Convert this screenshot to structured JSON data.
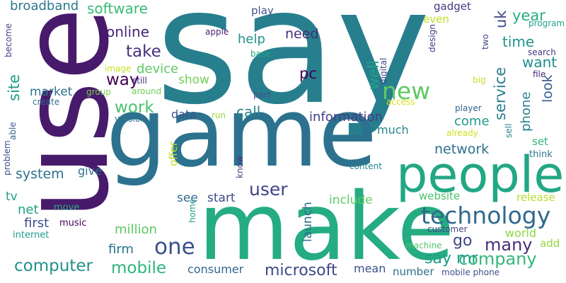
{
  "words": [
    {
      "text": "say",
      "color": "#277f8e"
    },
    {
      "text": "game",
      "color": "#2c728e"
    },
    {
      "text": "use",
      "color": "#481a6c"
    },
    {
      "text": "make",
      "color": "#25ac82"
    },
    {
      "text": "people",
      "color": "#22a785"
    },
    {
      "text": "technology",
      "color": "#31688e"
    },
    {
      "text": "new",
      "color": "#5ec962"
    },
    {
      "text": "user",
      "color": "#404588"
    },
    {
      "text": "one",
      "color": "#3b518b"
    },
    {
      "text": "computer",
      "color": "#21918c"
    },
    {
      "text": "mobile",
      "color": "#2fb47c"
    },
    {
      "text": "company",
      "color": "#35b779"
    },
    {
      "text": "microsoft",
      "color": "#3e4989"
    },
    {
      "text": "phone",
      "color": "#26828e"
    },
    {
      "text": "service",
      "color": "#287d8e"
    },
    {
      "text": "many",
      "color": "#472d7b"
    },
    {
      "text": "work",
      "color": "#4ac16d"
    },
    {
      "text": "system",
      "color": "#2d708e"
    },
    {
      "text": "take",
      "color": "#46327e"
    },
    {
      "text": "way",
      "color": "#440154"
    },
    {
      "text": "software",
      "color": "#3aba76"
    },
    {
      "text": "online",
      "color": "#482475"
    },
    {
      "text": "broadband",
      "color": "#2a788e"
    },
    {
      "text": "site",
      "color": "#1e9c89"
    },
    {
      "text": "market",
      "color": "#2c738e"
    },
    {
      "text": "network",
      "color": "#2d708e"
    },
    {
      "text": "pc",
      "color": "#440154"
    },
    {
      "text": "well",
      "color": "#20a386"
    },
    {
      "text": "want",
      "color": "#228c8d"
    },
    {
      "text": "look",
      "color": "#35608d"
    },
    {
      "text": "time",
      "color": "#1f958b"
    },
    {
      "text": "year",
      "color": "#27ad81"
    },
    {
      "text": "uk",
      "color": "#3e4a89"
    },
    {
      "text": "call",
      "color": "#26828e"
    },
    {
      "text": "information",
      "color": "#433e85"
    },
    {
      "text": "come",
      "color": "#1f978b"
    },
    {
      "text": "much",
      "color": "#24868e"
    },
    {
      "text": "device",
      "color": "#5ec962"
    },
    {
      "text": "show",
      "color": "#73d056"
    },
    {
      "text": "need",
      "color": "#472c7a"
    },
    {
      "text": "help",
      "color": "#21918c"
    },
    {
      "text": "data",
      "color": "#39558c"
    },
    {
      "text": "go",
      "color": "#3f4788"
    },
    {
      "text": "say mr",
      "color": "#1f9e89"
    },
    {
      "text": "first",
      "color": "#3d4e8a"
    },
    {
      "text": "net",
      "color": "#20a386"
    },
    {
      "text": "tv",
      "color": "#1fa188"
    },
    {
      "text": "million",
      "color": "#5cc863"
    },
    {
      "text": "firm",
      "color": "#2a768e"
    },
    {
      "text": "give",
      "color": "#2c728e"
    },
    {
      "text": "see",
      "color": "#2f6c8e"
    },
    {
      "text": "start",
      "color": "#3e4a89"
    },
    {
      "text": "include",
      "color": "#5ec962"
    },
    {
      "text": "launch",
      "color": "#2e6e8e"
    },
    {
      "text": "website",
      "color": "#4ac16d"
    },
    {
      "text": "release",
      "color": "#b5de2b"
    },
    {
      "text": "world",
      "color": "#8fd744"
    },
    {
      "text": "add",
      "color": "#95d840"
    },
    {
      "text": "consumer",
      "color": "#31678e"
    },
    {
      "text": "mean",
      "color": "#3b528b"
    },
    {
      "text": "number",
      "color": "#2d718e"
    },
    {
      "text": "offer",
      "color": "#bddf26"
    },
    {
      "text": "play",
      "color": "#3b528b"
    },
    {
      "text": "gadget",
      "color": "#443983"
    },
    {
      "text": "even",
      "color": "#bddf26"
    },
    {
      "text": "set",
      "color": "#2fb47c"
    },
    {
      "text": "think",
      "color": "#2c738e"
    },
    {
      "text": "music",
      "color": "#440154"
    },
    {
      "text": "internet",
      "color": "#1f9e89"
    },
    {
      "text": "move",
      "color": "#27ad81"
    },
    {
      "text": "home",
      "color": "#1f9a8a"
    },
    {
      "text": "know",
      "color": "#46337f"
    },
    {
      "text": "content",
      "color": "#24868e"
    },
    {
      "text": "customer",
      "color": "#414487"
    },
    {
      "text": "machine",
      "color": "#52c569"
    },
    {
      "text": "mobile phone",
      "color": "#3b528b"
    },
    {
      "text": "apple",
      "color": "#481f70"
    },
    {
      "text": "base",
      "color": "#20a386"
    },
    {
      "text": "image",
      "color": "#c8e020"
    },
    {
      "text": "still",
      "color": "#472a7a"
    },
    {
      "text": "around",
      "color": "#70cf57"
    },
    {
      "text": "group",
      "color": "#7ad151"
    },
    {
      "text": "create",
      "color": "#2d708e"
    },
    {
      "text": "become",
      "color": "#424086"
    },
    {
      "text": "able",
      "color": "#355f8d"
    },
    {
      "text": "problem",
      "color": "#3e4989"
    },
    {
      "text": "version",
      "color": "#2d718e"
    },
    {
      "text": "run",
      "color": "#9bd93c"
    },
    {
      "text": "part",
      "color": "#3b528b"
    },
    {
      "text": "access",
      "color": "#d8e219"
    },
    {
      "text": "digital",
      "color": "#404688"
    },
    {
      "text": "design",
      "color": "#453781"
    },
    {
      "text": "file",
      "color": "#482878"
    },
    {
      "text": "big",
      "color": "#c2df23"
    },
    {
      "text": "search",
      "color": "#453882"
    },
    {
      "text": "two",
      "color": "#3e4989"
    },
    {
      "text": "program",
      "color": "#1fa287"
    },
    {
      "text": "player",
      "color": "#31668e"
    },
    {
      "text": "already",
      "color": "#d0e11c"
    },
    {
      "text": "sell",
      "color": "#26828e"
    }
  ]
}
